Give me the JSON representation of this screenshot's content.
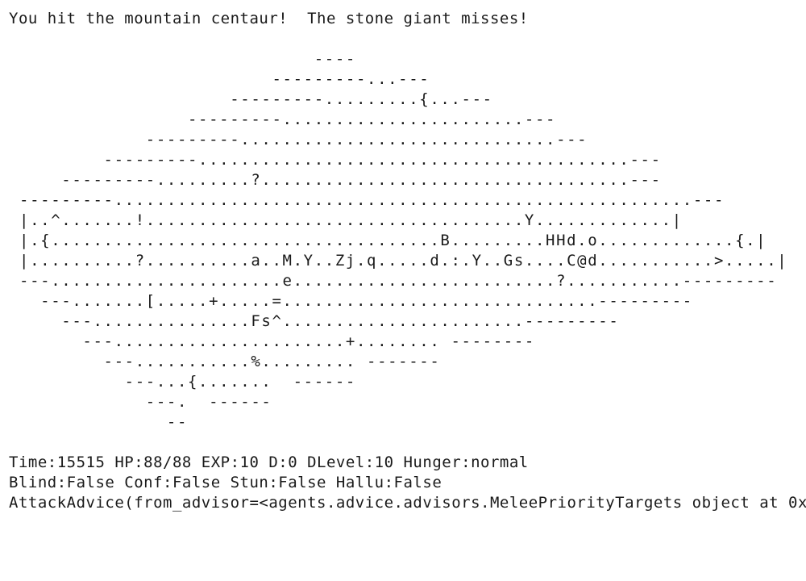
{
  "message": "You hit the mountain centaur!  The stone giant misses!",
  "map_rows": [
    "                             ----",
    "                         ---------...---",
    "                     ---------.........{...---",
    "                 ---------.......................---",
    "             ---------..............................---",
    "         ---------.........................................---",
    "     ---------.........?...................................---",
    " ---------.......................................................---",
    " |..^.......!....................................Y.............|",
    " |.{.....................................B.........HHd.o.............{.|",
    " |..........?..........a..M.Y..Zj.q.....d.:.Y..Gs....C@d...........>.....|",
    " ---......................e.........................?...........---------",
    "   ---.......[.....+.....=..............................---------",
    "     ---...............Fs^.......................---------",
    "       ---......................+........ --------",
    "         ---...........%......... -------",
    "           ---...{.......  ------",
    "             ---.  ------",
    "               --"
  ],
  "status": {
    "line1": "Time:15515 HP:88/88 EXP:10 D:0 DLevel:10 Hunger:normal",
    "line2": "Blind:False Conf:False Stun:False Hallu:False",
    "line3": "AttackAdvice(from_advisor=<agents.advice.advisors.MeleePriorityTargets object at 0x"
  }
}
